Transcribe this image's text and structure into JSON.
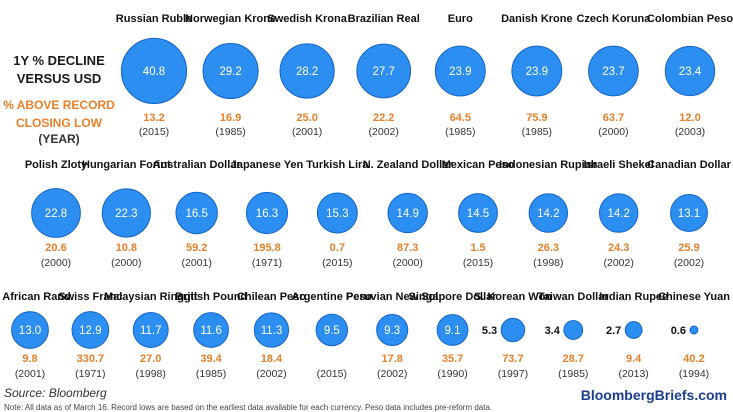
{
  "legend": {
    "title_line1": "1Y % DECLINE",
    "title_line2": "VERSUS USD",
    "pct_line1": "% ABOVE RECORD",
    "pct_line2": "CLOSING LOW",
    "year_label": "(YEAR)"
  },
  "footer": {
    "source": "Source: Bloomberg",
    "brand": "BloombergBriefs.com",
    "note": "Note: All data as of March 16. Record lows are based on the earliest data available for each currency. Peso data includes pre-reform data."
  },
  "colors": {
    "bubble": "#2b8ef0",
    "bubble_stroke": "#1464c8",
    "pct_text": "#e8802a",
    "year_text": "#333333"
  },
  "chart_data": {
    "type": "bubble",
    "measure": "1Y % decline versus USD",
    "rows": [
      [
        {
          "currency": "Russian Ruble",
          "decline": "40.8",
          "above_low": "13.2",
          "year": "(2015)"
        },
        {
          "currency": "Norwegian Krone",
          "decline": "29.2",
          "above_low": "16.9",
          "year": "(1985)"
        },
        {
          "currency": "Swedish Krona",
          "decline": "28.2",
          "above_low": "25.0",
          "year": "(2001)"
        },
        {
          "currency": "Brazilian Real",
          "decline": "27.7",
          "above_low": "22.2",
          "year": "(2002)"
        },
        {
          "currency": "Euro",
          "decline": "23.9",
          "above_low": "64.5",
          "year": "(1985)"
        },
        {
          "currency": "Danish Krone",
          "decline": "23.9",
          "above_low": "75.9",
          "year": "(1985)"
        },
        {
          "currency": "Czech Koruna",
          "decline": "23.7",
          "above_low": "63.7",
          "year": "(2000)"
        },
        {
          "currency": "Colombian Peso",
          "decline": "23.4",
          "above_low": "12.0",
          "year": "(2003)"
        }
      ],
      [
        {
          "currency": "Polish Zloty",
          "decline": "22.8",
          "above_low": "20.6",
          "year": "(2000)"
        },
        {
          "currency": "Hungarian Forint",
          "decline": "22.3",
          "above_low": "10.8",
          "year": "(2000)"
        },
        {
          "currency": "Australian Dollar",
          "decline": "16.5",
          "above_low": "59.2",
          "year": "(2001)"
        },
        {
          "currency": "Japanese Yen",
          "decline": "16.3",
          "above_low": "195.8",
          "year": "(1971)"
        },
        {
          "currency": "Turkish Lira",
          "decline": "15.3",
          "above_low": "0.7",
          "year": "(2015)"
        },
        {
          "currency": "N. Zealand Dollar",
          "decline": "14.9",
          "above_low": "87.3",
          "year": "(2000)"
        },
        {
          "currency": "Mexican Peso",
          "decline": "14.5",
          "above_low": "1.5",
          "year": "(2015)"
        },
        {
          "currency": "Indonesian Rupiah",
          "decline": "14.2",
          "above_low": "26.3",
          "year": "(1998)"
        },
        {
          "currency": "Israeli Shekel",
          "decline": "14.2",
          "above_low": "24.3",
          "year": "(2002)"
        },
        {
          "currency": "Canadian Dollar",
          "decline": "13.1",
          "above_low": "25.9",
          "year": "(2002)"
        }
      ],
      [
        {
          "currency": "S. African Rand",
          "decline": "13.0",
          "above_low": "9.8",
          "year": "(2001)"
        },
        {
          "currency": "Swiss Franc",
          "decline": "12.9",
          "above_low": "330.7",
          "year": "(1971)"
        },
        {
          "currency": "Malaysian Ringgit",
          "decline": "11.7",
          "above_low": "27.0",
          "year": "(1998)"
        },
        {
          "currency": "British Pound",
          "decline": "11.6",
          "above_low": "39.4",
          "year": "(1985)"
        },
        {
          "currency": "Chilean Peso",
          "decline": "11.3",
          "above_low": "18.4",
          "year": "(2002)"
        },
        {
          "currency": "Argentine Peso",
          "decline": "9.5",
          "above_low": "",
          "year": "(2015)"
        },
        {
          "currency": "Peruvian New Sol",
          "decline": "9.3",
          "above_low": "17.8",
          "year": "(2002)"
        },
        {
          "currency": "Singapore Dollar",
          "decline": "9.1",
          "above_low": "35.7",
          "year": "(1990)"
        },
        {
          "currency": "S. Korean Won",
          "decline": "5.3",
          "above_low": "73.7",
          "year": "(1997)"
        },
        {
          "currency": "Taiwan Dollar",
          "decline": "3.4",
          "above_low": "28.7",
          "year": "(1985)"
        },
        {
          "currency": "Indian Rupee",
          "decline": "2.7",
          "above_low": "9.4",
          "year": "(2013)"
        },
        {
          "currency": "Chinese Yuan",
          "decline": "0.6",
          "above_low": "40.2",
          "year": "(1994)"
        }
      ]
    ]
  }
}
